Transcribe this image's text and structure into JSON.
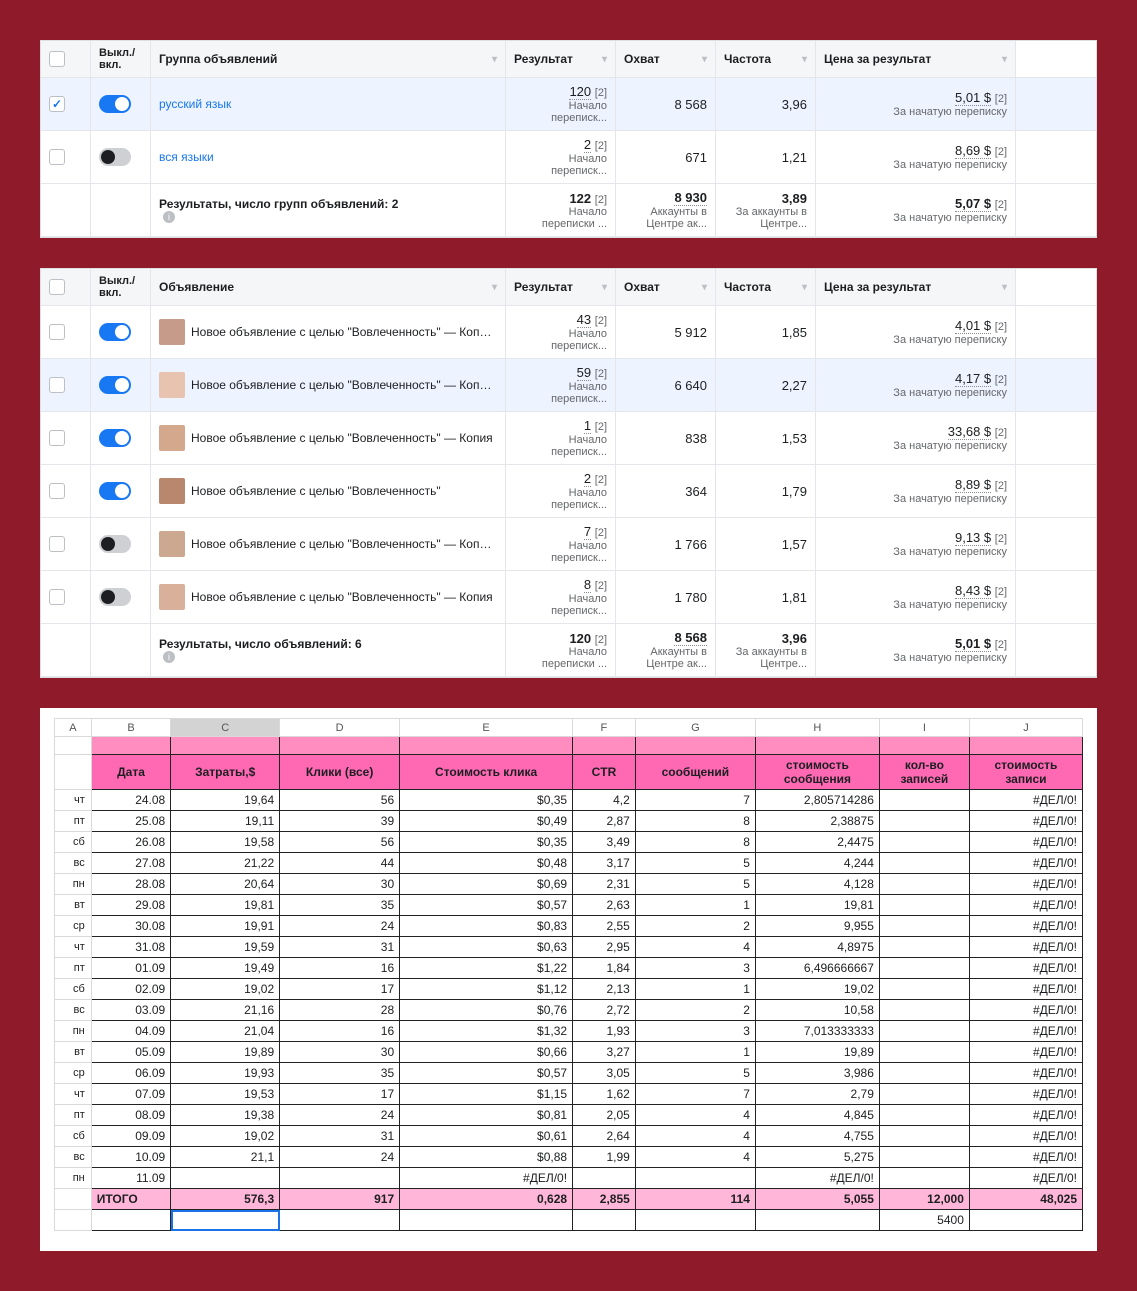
{
  "fb1": {
    "headers": {
      "toggle": "Выкл./\nвкл.",
      "group": "Группа объявлений",
      "result": "Результат",
      "reach": "Охват",
      "freq": "Частота",
      "cpr": "Цена за результат"
    },
    "rows": [
      {
        "checked": true,
        "on": true,
        "name": "русский язык",
        "link": true,
        "result": "120",
        "sup": "[2]",
        "sub": "Начало переписк...",
        "reach": "8 568",
        "freq": "3,96",
        "price": "5,01 $",
        "psub": "За начатую переписку"
      },
      {
        "checked": false,
        "on": false,
        "name": "вся языки",
        "link": true,
        "result": "2",
        "sup": "[2]",
        "sub": "Начало переписк...",
        "reach": "671",
        "freq": "1,21",
        "price": "8,69 $",
        "psub": "За начатую переписку"
      }
    ],
    "total": {
      "label": "Результаты, число групп объявлений: 2",
      "result": "122",
      "sup": "[2]",
      "sub": "Начало переписки ...",
      "reach": "8 930",
      "rsub": "Аккаунты в Центре ак...",
      "freq": "3,89",
      "fsub": "За аккаунты в Центре...",
      "price": "5,07 $",
      "psub": "За начатую переписку"
    }
  },
  "fb2": {
    "headers": {
      "toggle": "Выкл./\nвкл.",
      "group": "Объявление",
      "result": "Результат",
      "reach": "Охват",
      "freq": "Частота",
      "cpr": "Цена за результат"
    },
    "rows": [
      {
        "on": true,
        "name": "Новое объявление с целью \"Вовлеченность\" — Копия — К...",
        "result": "43",
        "sup": "[2]",
        "sub": "Начало переписк...",
        "reach": "5 912",
        "freq": "1,85",
        "price": "4,01 $",
        "psub": "За начатую переписку",
        "thumb": "#c79b8a"
      },
      {
        "on": true,
        "name": "Новое объявление с целью \"Вовлеченность\" — Копия — К...",
        "result": "59",
        "sup": "[2]",
        "sub": "Начало переписк...",
        "reach": "6 640",
        "freq": "2,27",
        "price": "4,17 $",
        "psub": "За начатую переписку",
        "hl": true,
        "thumb": "#e8c4b0"
      },
      {
        "on": true,
        "name": "Новое объявление с целью \"Вовлеченность\" — Копия",
        "result": "1",
        "sup": "[2]",
        "sub": "Начало переписк...",
        "reach": "838",
        "freq": "1,53",
        "price": "33,68 $",
        "psub": "За начатую переписку",
        "thumb": "#d4a88c"
      },
      {
        "on": true,
        "name": "Новое объявление с целью \"Вовлеченность\"",
        "result": "2",
        "sup": "[2]",
        "sub": "Начало переписк...",
        "reach": "364",
        "freq": "1,79",
        "price": "8,89 $",
        "psub": "За начатую переписку",
        "thumb": "#b8876e"
      },
      {
        "on": false,
        "name": "Новое объявление с целью \"Вовлеченность\" — Копия — К...",
        "result": "7",
        "sup": "[2]",
        "sub": "Начало переписк...",
        "reach": "1 766",
        "freq": "1,57",
        "price": "9,13 $",
        "psub": "За начатую переписку",
        "thumb": "#cda890"
      },
      {
        "on": false,
        "name": "Новое объявление с целью \"Вовлеченность\" — Копия",
        "result": "8",
        "sup": "[2]",
        "sub": "Начало переписк...",
        "reach": "1 780",
        "freq": "1,81",
        "price": "8,43 $",
        "psub": "За начатую переписку",
        "thumb": "#d9b09a"
      }
    ],
    "total": {
      "label": "Результаты, число объявлений: 6",
      "result": "120",
      "sup": "[2]",
      "sub": "Начало переписки ...",
      "reach": "8 568",
      "rsub": "Аккаунты в Центре ак...",
      "freq": "3,96",
      "fsub": "За аккаунты в Центре...",
      "price": "5,01 $",
      "psub": "За начатую переписку"
    }
  },
  "sheet": {
    "letters": [
      "A",
      "B",
      "C",
      "D",
      "E",
      "F",
      "G",
      "H",
      "I",
      "J"
    ],
    "selLetter": "C",
    "headers": [
      "Дата",
      "Затраты,$",
      "Клики (все)",
      "Стоимость клика",
      "CTR",
      "сообщений",
      "стоимость\nсообщения",
      "кол-во\nзаписей",
      "стоимость\nзаписи"
    ],
    "rows": [
      [
        "чт",
        "24.08",
        "19,64",
        "56",
        "$0,35",
        "4,2",
        "7",
        "2,805714286",
        "",
        "#ДЕЛ/0!"
      ],
      [
        "пт",
        "25.08",
        "19,11",
        "39",
        "$0,49",
        "2,87",
        "8",
        "2,38875",
        "",
        "#ДЕЛ/0!"
      ],
      [
        "сб",
        "26.08",
        "19,58",
        "56",
        "$0,35",
        "3,49",
        "8",
        "2,4475",
        "",
        "#ДЕЛ/0!"
      ],
      [
        "вс",
        "27.08",
        "21,22",
        "44",
        "$0,48",
        "3,17",
        "5",
        "4,244",
        "",
        "#ДЕЛ/0!"
      ],
      [
        "пн",
        "28.08",
        "20,64",
        "30",
        "$0,69",
        "2,31",
        "5",
        "4,128",
        "",
        "#ДЕЛ/0!"
      ],
      [
        "вт",
        "29.08",
        "19,81",
        "35",
        "$0,57",
        "2,63",
        "1",
        "19,81",
        "",
        "#ДЕЛ/0!"
      ],
      [
        "ср",
        "30.08",
        "19,91",
        "24",
        "$0,83",
        "2,55",
        "2",
        "9,955",
        "",
        "#ДЕЛ/0!"
      ],
      [
        "чт",
        "31.08",
        "19,59",
        "31",
        "$0,63",
        "2,95",
        "4",
        "4,8975",
        "",
        "#ДЕЛ/0!"
      ],
      [
        "пт",
        "01.09",
        "19,49",
        "16",
        "$1,22",
        "1,84",
        "3",
        "6,496666667",
        "",
        "#ДЕЛ/0!"
      ],
      [
        "сб",
        "02.09",
        "19,02",
        "17",
        "$1,12",
        "2,13",
        "1",
        "19,02",
        "",
        "#ДЕЛ/0!"
      ],
      [
        "вс",
        "03.09",
        "21,16",
        "28",
        "$0,76",
        "2,72",
        "2",
        "10,58",
        "",
        "#ДЕЛ/0!"
      ],
      [
        "пн",
        "04.09",
        "21,04",
        "16",
        "$1,32",
        "1,93",
        "3",
        "7,013333333",
        "",
        "#ДЕЛ/0!"
      ],
      [
        "вт",
        "05.09",
        "19,89",
        "30",
        "$0,66",
        "3,27",
        "1",
        "19,89",
        "",
        "#ДЕЛ/0!"
      ],
      [
        "ср",
        "06.09",
        "19,93",
        "35",
        "$0,57",
        "3,05",
        "5",
        "3,986",
        "",
        "#ДЕЛ/0!"
      ],
      [
        "чт",
        "07.09",
        "19,53",
        "17",
        "$1,15",
        "1,62",
        "7",
        "2,79",
        "",
        "#ДЕЛ/0!"
      ],
      [
        "пт",
        "08.09",
        "19,38",
        "24",
        "$0,81",
        "2,05",
        "4",
        "4,845",
        "",
        "#ДЕЛ/0!"
      ],
      [
        "сб",
        "09.09",
        "19,02",
        "31",
        "$0,61",
        "2,64",
        "4",
        "4,755",
        "",
        "#ДЕЛ/0!"
      ],
      [
        "вс",
        "10.09",
        "21,1",
        "24",
        "$0,88",
        "1,99",
        "4",
        "5,275",
        "",
        "#ДЕЛ/0!"
      ],
      [
        "пн",
        "11.09",
        "",
        "",
        "#ДЕЛ/0!",
        "",
        "",
        "#ДЕЛ/0!",
        "",
        "#ДЕЛ/0!"
      ]
    ],
    "total": [
      "",
      "ИТОГО",
      "576,3",
      "917",
      "0,628",
      "2,855",
      "114",
      "5,055",
      "12,000",
      "48,025"
    ],
    "extra": [
      "",
      "",
      "",
      "",
      "",
      "",
      "",
      "",
      "5400",
      ""
    ]
  }
}
